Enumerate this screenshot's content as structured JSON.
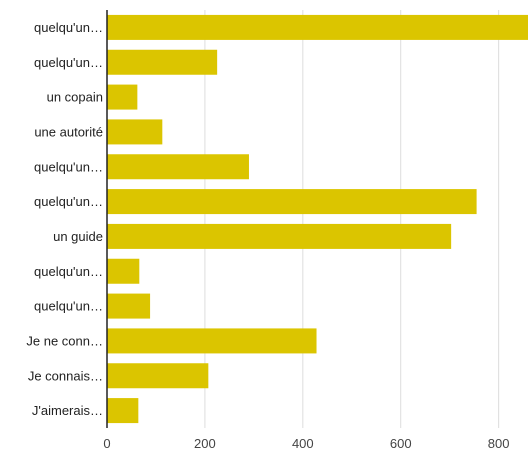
{
  "chart_data": {
    "type": "bar",
    "orientation": "horizontal",
    "categories": [
      "quelqu'un…",
      "quelqu'un…",
      "un copain",
      "une autorité",
      "quelqu'un…",
      "quelqu'un…",
      "un guide",
      "quelqu'un…",
      "quelqu'un…",
      "Je ne conn…",
      "Je connais…",
      "J'aimerais…"
    ],
    "values": [
      860,
      225,
      62,
      113,
      290,
      755,
      703,
      66,
      88,
      428,
      207,
      64
    ],
    "xlim": [
      0,
      860
    ],
    "xticks": [
      0,
      200,
      400,
      600,
      800
    ],
    "grid": true,
    "bar_color": "#dbc500",
    "grid_color": "#dddddd",
    "axis_color": "#222222"
  }
}
